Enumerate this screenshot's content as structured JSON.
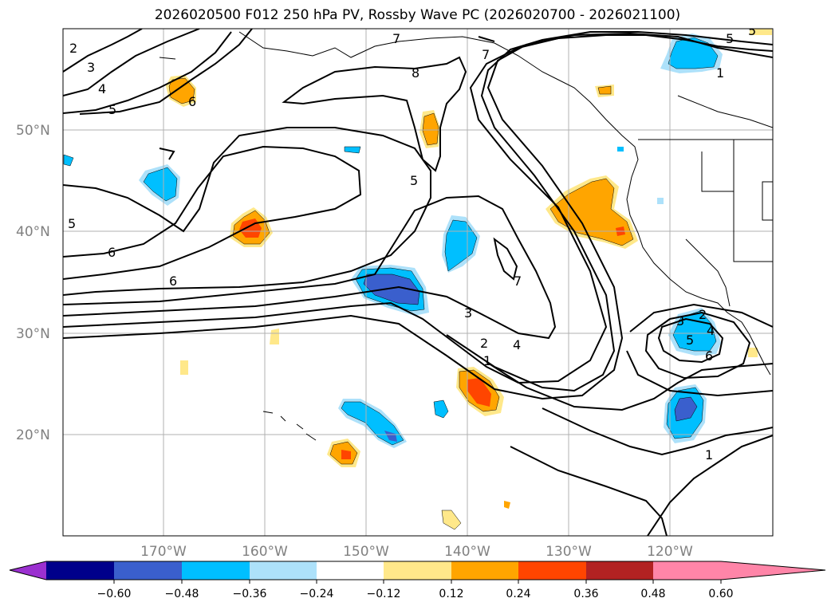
{
  "title": "2026020500 F012 250 hPa PV, Rossby Wave PC (2026020700 - 2026021100)",
  "lat_labels": [
    "50°N",
    "40°N",
    "30°N",
    "20°N"
  ],
  "lon_labels": [
    "170°W",
    "160°W",
    "150°W",
    "140°W",
    "130°W",
    "120°W"
  ],
  "contour_labels": [
    "2",
    "3",
    "4",
    "5",
    "6",
    "5",
    "6",
    "7",
    "8",
    "7",
    "5",
    "6",
    "7",
    "5",
    "4",
    "3",
    "2",
    "1",
    "5",
    "1",
    "3",
    "2",
    "4",
    "5",
    "6",
    "1"
  ],
  "colorbar": {
    "ticks": [
      "−0.60",
      "−0.48",
      "−0.36",
      "−0.24",
      "−0.12",
      "0.12",
      "0.24",
      "0.36",
      "0.48",
      "0.60"
    ],
    "colors": [
      "#9b30d0",
      "#00008b",
      "#3a5fcd",
      "#00bfff",
      "#ade1fa",
      "#ffffff",
      "#ffe88a",
      "#ffa500",
      "#ff4500",
      "#b22222",
      "#ff85a8"
    ]
  },
  "colors": {
    "neg_light": "#ade1fa",
    "neg_mid": "#00bfff",
    "neg_dark": "#3a5fcd",
    "pos_light": "#ffe88a",
    "pos_mid": "#ffa500",
    "pos_dark": "#ff4500",
    "grid": "#b0b0b0",
    "contour": "#000000"
  }
}
